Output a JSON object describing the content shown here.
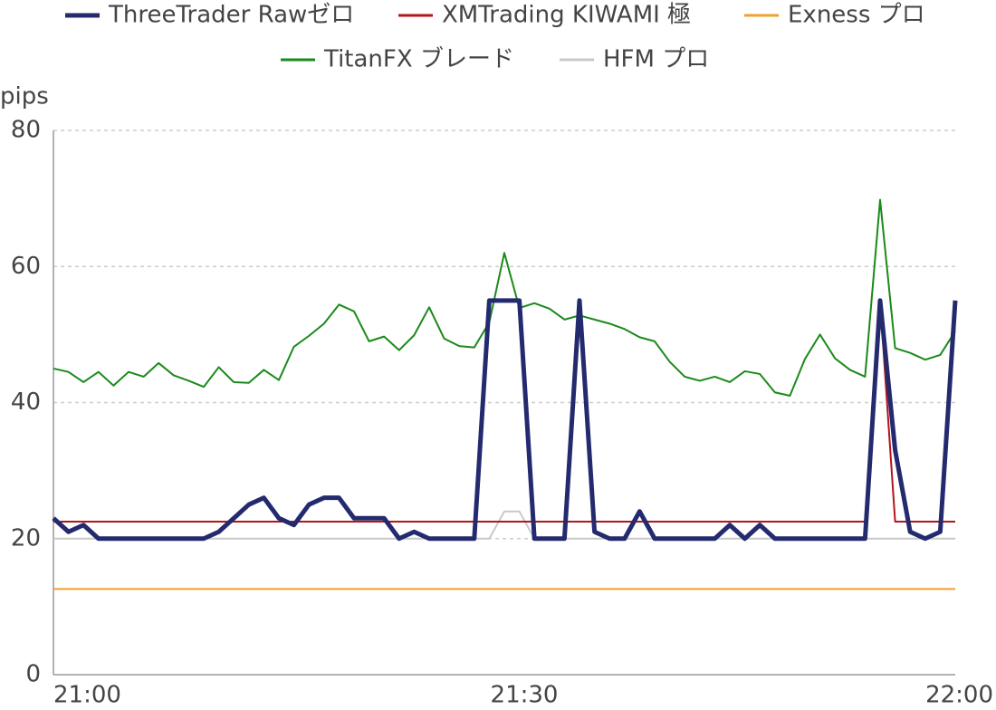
{
  "chart_data": {
    "type": "line",
    "ylabel": "pips",
    "categories": [
      "21:00",
      null,
      null,
      null,
      null,
      null,
      null,
      null,
      null,
      null,
      null,
      null,
      null,
      null,
      null,
      null,
      null,
      null,
      null,
      null,
      null,
      null,
      null,
      null,
      null,
      null,
      null,
      null,
      null,
      null,
      "21:30",
      null,
      null,
      null,
      null,
      null,
      null,
      null,
      null,
      null,
      null,
      null,
      null,
      null,
      null,
      null,
      null,
      null,
      null,
      null,
      null,
      null,
      null,
      null,
      null,
      null,
      null,
      null,
      null,
      null,
      "22:00"
    ],
    "ylim": [
      0,
      80
    ],
    "yticks": [
      0,
      20,
      40,
      60,
      80
    ],
    "grid": true,
    "series": [
      {
        "name": "ThreeTrader Rawゼロ",
        "color": "#232a6e",
        "values": [
          23,
          21,
          22,
          20,
          20,
          20,
          20,
          20,
          20,
          20,
          20,
          21,
          23,
          25,
          26,
          23,
          22,
          25,
          26,
          26,
          23,
          23,
          23,
          20,
          21,
          20,
          20,
          20,
          20,
          55,
          55,
          55,
          20,
          20,
          20,
          55,
          21,
          20,
          20,
          24,
          20,
          20,
          20,
          20,
          20,
          22,
          20,
          22,
          20,
          20,
          20,
          20,
          20,
          20,
          20,
          55,
          33,
          21,
          20,
          21,
          55
        ]
      },
      {
        "name": "XMTrading KIWAMI 極",
        "color": "#b0161c",
        "values": [
          22.5,
          22.5,
          22.5,
          22.5,
          22.5,
          22.5,
          22.5,
          22.5,
          22.5,
          22.5,
          22.5,
          22.5,
          22.5,
          22.5,
          22.5,
          22.5,
          22.5,
          22.5,
          22.5,
          22.5,
          22.5,
          22.5,
          22.5,
          22.5,
          22.5,
          22.5,
          22.5,
          22.5,
          22.5,
          22.5,
          22.5,
          22.5,
          22.5,
          22.5,
          22.5,
          22.5,
          22.5,
          22.5,
          22.5,
          22.5,
          22.5,
          22.5,
          22.5,
          22.5,
          22.5,
          22.5,
          22.5,
          22.5,
          22.5,
          22.5,
          22.5,
          22.5,
          22.5,
          22.5,
          22.5,
          55,
          22.5,
          22.5,
          22.5,
          22.5,
          22.5
        ]
      },
      {
        "name": "Exness プロ",
        "color": "#f0a030",
        "values": [
          12.6,
          12.6,
          12.6,
          12.6,
          12.6,
          12.6,
          12.6,
          12.6,
          12.6,
          12.6,
          12.6,
          12.6,
          12.6,
          12.6,
          12.6,
          12.6,
          12.6,
          12.6,
          12.6,
          12.6,
          12.6,
          12.6,
          12.6,
          12.6,
          12.6,
          12.6,
          12.6,
          12.6,
          12.6,
          12.6,
          12.6,
          12.6,
          12.6,
          12.6,
          12.6,
          12.6,
          12.6,
          12.6,
          12.6,
          12.6,
          12.6,
          12.6,
          12.6,
          12.6,
          12.6,
          12.6,
          12.6,
          12.6,
          12.6,
          12.6,
          12.6,
          12.6,
          12.6,
          12.6,
          12.6,
          12.6,
          12.6,
          12.6,
          12.6,
          12.6,
          12.6
        ]
      },
      {
        "name": "TitanFX ブレード",
        "color": "#1a8a1a",
        "values": [
          45,
          44.5,
          43,
          44.5,
          42.5,
          44.5,
          43.8,
          45.8,
          44,
          43.2,
          42.3,
          45.2,
          43,
          42.9,
          44.8,
          43.3,
          48.2,
          49.8,
          51.6,
          54.4,
          53.4,
          49,
          49.7,
          47.7,
          49.9,
          54,
          49.4,
          48.3,
          48.1,
          51.8,
          62,
          53.9,
          54.6,
          53.8,
          52.2,
          52.8,
          52.2,
          51.6,
          50.8,
          49.6,
          49,
          46,
          43.8,
          43.2,
          43.8,
          43,
          44.6,
          44.2,
          41.5,
          41,
          46.4,
          50,
          46.5,
          44.8,
          43.8,
          69.8,
          48,
          47.3,
          46.3,
          47,
          50.5
        ]
      },
      {
        "name": "HFM プロ",
        "color": "#c8c8c8",
        "values": [
          20,
          20,
          20,
          20,
          20,
          20,
          20,
          20,
          20,
          20,
          20,
          20,
          20,
          20,
          20,
          20,
          20,
          20,
          20,
          20,
          20,
          20,
          20,
          20,
          20,
          20,
          20,
          20,
          20,
          20,
          24,
          24,
          20,
          20,
          20,
          20,
          20,
          20,
          20,
          20,
          20,
          20,
          20,
          20,
          20,
          20,
          20,
          20,
          20,
          20,
          20,
          20,
          20,
          20,
          20,
          20,
          20,
          20,
          20,
          20,
          20
        ]
      }
    ]
  }
}
